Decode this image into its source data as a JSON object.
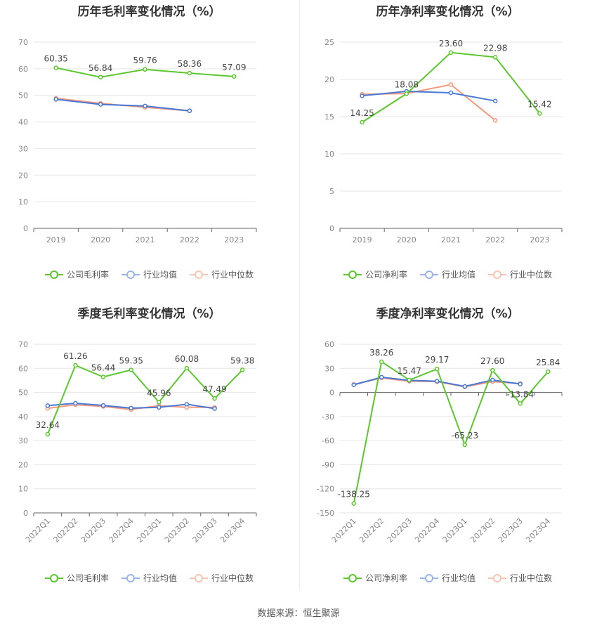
{
  "colors": {
    "company": "#5cc72e",
    "avg": "#4a78d6",
    "median": "#f59a7c"
  },
  "chart_data": [
    {
      "type": "line",
      "title": "历年毛利率变化情况（%）",
      "categories": [
        "2019",
        "2020",
        "2021",
        "2022",
        "2023"
      ],
      "ylim": [
        0,
        70
      ],
      "yticks": [
        0,
        10,
        20,
        30,
        40,
        50,
        60,
        70
      ],
      "series": [
        {
          "name": "公司毛利率",
          "values": [
            60.35,
            56.84,
            59.76,
            58.36,
            57.09
          ],
          "labels": [
            "60.35",
            "56.84",
            "59.76",
            "58.36",
            "57.09"
          ]
        },
        {
          "name": "行业均值",
          "values": [
            48.5,
            46.6,
            46.0,
            44.2,
            null
          ]
        },
        {
          "name": "行业中位数",
          "values": [
            48.9,
            47.0,
            45.5,
            44.2,
            null
          ]
        }
      ],
      "legend": "bottom"
    },
    {
      "type": "line",
      "title": "历年净利率变化情况（%）",
      "categories": [
        "2019",
        "2020",
        "2021",
        "2022",
        "2023"
      ],
      "ylim": [
        0,
        25
      ],
      "yticks": [
        0,
        5,
        10,
        15,
        20,
        25
      ],
      "series": [
        {
          "name": "公司净利率",
          "values": [
            14.25,
            18.08,
            23.6,
            22.98,
            15.42
          ],
          "labels": [
            "14.25",
            "18.08",
            "23.60",
            "22.98",
            "15.42"
          ]
        },
        {
          "name": "行业均值",
          "values": [
            17.8,
            18.4,
            18.2,
            17.1,
            null
          ]
        },
        {
          "name": "行业中位数",
          "values": [
            18.0,
            18.1,
            19.3,
            14.5,
            null
          ]
        }
      ],
      "legend": "bottom"
    },
    {
      "type": "line",
      "title": "季度毛利率变化情况（%）",
      "categories": [
        "2022Q1",
        "2022Q2",
        "2022Q3",
        "2022Q4",
        "2023Q1",
        "2023Q2",
        "2023Q3",
        "2023Q4"
      ],
      "ylim": [
        0,
        70
      ],
      "yticks": [
        0,
        10,
        20,
        30,
        40,
        50,
        60,
        70
      ],
      "series": [
        {
          "name": "公司毛利率",
          "values": [
            32.64,
            61.26,
            56.44,
            59.35,
            45.96,
            60.08,
            47.49,
            59.38
          ],
          "labels": [
            "32.64",
            "61.26",
            "56.44",
            "59.35",
            "45.96",
            "60.08",
            "47.49",
            "59.38"
          ]
        },
        {
          "name": "行业均值",
          "values": [
            44.5,
            45.5,
            44.6,
            43.5,
            43.8,
            45.1,
            43.3,
            null
          ]
        },
        {
          "name": "行业中位数",
          "values": [
            43.4,
            44.9,
            44.2,
            42.9,
            44.5,
            43.8,
            43.8,
            null
          ]
        }
      ],
      "legend": "bottom"
    },
    {
      "type": "line",
      "title": "季度净利率变化情况（%）",
      "categories": [
        "2022Q1",
        "2022Q2",
        "2022Q3",
        "2022Q4",
        "2023Q1",
        "2023Q2",
        "2023Q3",
        "2023Q4"
      ],
      "ylim": [
        -150,
        60
      ],
      "yticks": [
        -150,
        -120,
        -90,
        -60,
        -30,
        0,
        30,
        60
      ],
      "series": [
        {
          "name": "公司净利率",
          "values": [
            -138.25,
            38.26,
            15.47,
            29.17,
            -65.23,
            27.6,
            -13.84,
            25.84
          ],
          "labels": [
            "-138.25",
            "38.26",
            "15.47",
            "29.17",
            "-65.23",
            "27.60",
            "-13.84",
            "25.84"
          ]
        },
        {
          "name": "行业均值",
          "values": [
            9.5,
            19.0,
            15.0,
            14.0,
            7.5,
            15.5,
            10.5,
            null
          ]
        },
        {
          "name": "行业中位数",
          "values": [
            10.0,
            18.0,
            14.0,
            13.5,
            7.0,
            13.5,
            11.0,
            null
          ]
        }
      ],
      "legend": "bottom"
    }
  ],
  "source": "数据来源：恒生聚源"
}
